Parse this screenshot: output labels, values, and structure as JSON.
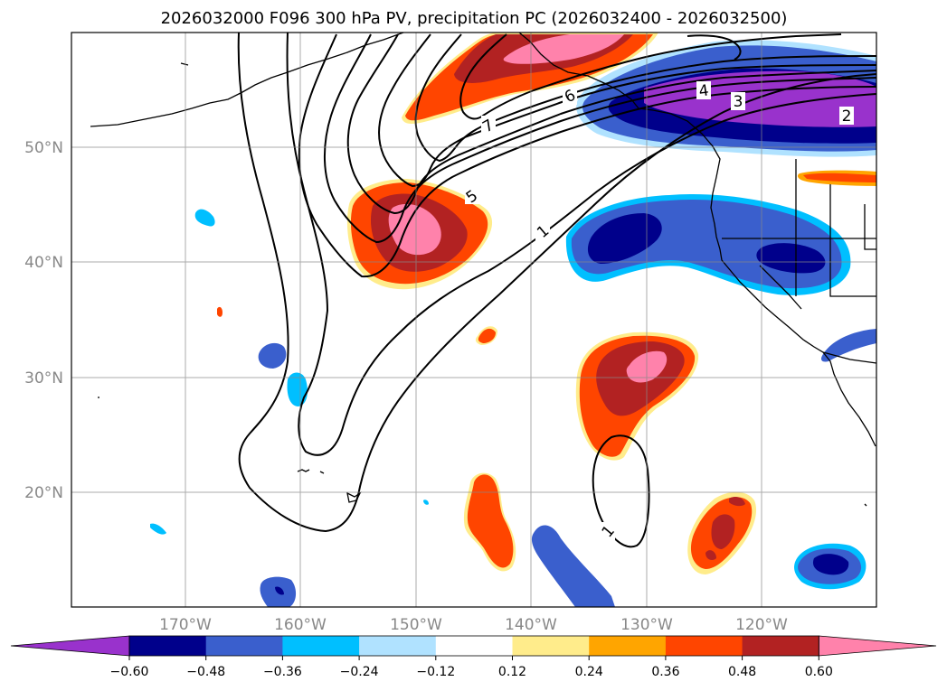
{
  "title": "2026032000 F096 300 hPa PV, precipitation PC (2026032400 - 2026032500)",
  "map": {
    "lat_labels": [
      "50°N",
      "40°N",
      "30°N",
      "20°N"
    ],
    "lon_labels": [
      "170°W",
      "160°W",
      "150°W",
      "140°W",
      "130°W",
      "120°W"
    ],
    "gridlines": true,
    "pv_contour_labels": [
      "7",
      "6",
      "5",
      "4",
      "3",
      "2",
      "1",
      "1"
    ]
  },
  "colorbar": {
    "tick_labels": [
      "−0.60",
      "−0.48",
      "−0.36",
      "−0.24",
      "−0.12",
      "0.12",
      "0.24",
      "0.36",
      "0.48",
      "0.60"
    ],
    "colors": [
      "#9932cc",
      "#00008b",
      "#3a5fcd",
      "#00bfff",
      "#b0e2ff",
      "#ffffff",
      "#ffec8b",
      "#ffa500",
      "#ff4500",
      "#b22222",
      "#ff82ab"
    ],
    "extend": "both",
    "orientation": "horizontal"
  }
}
